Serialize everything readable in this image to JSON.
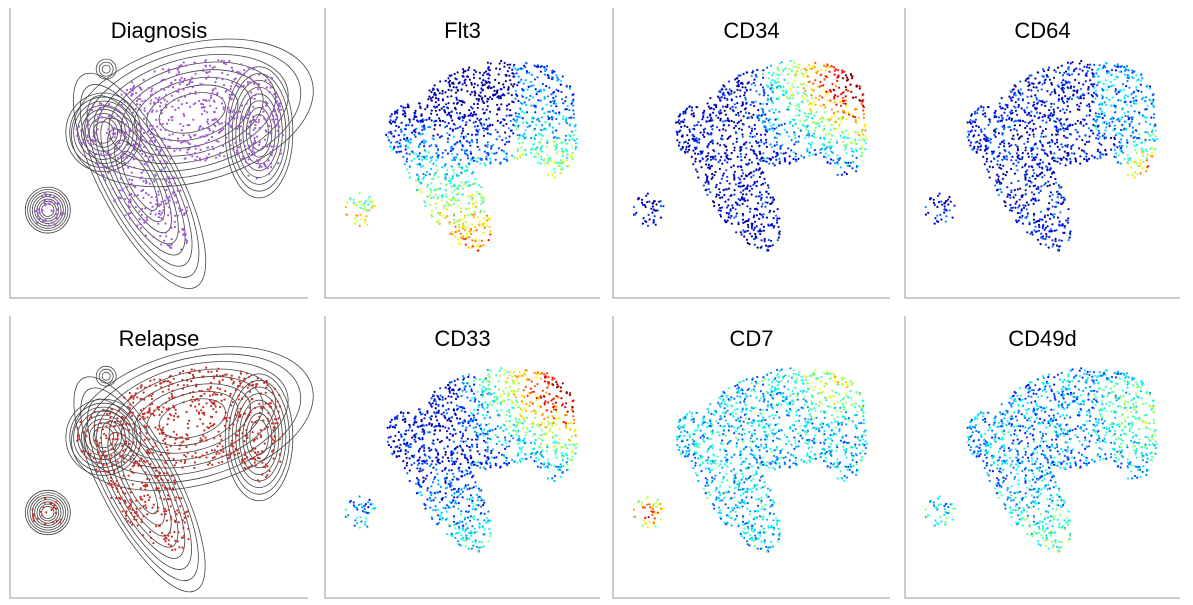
{
  "panels": [
    {
      "title": "Diagnosis"
    },
    {
      "title": "Flt3"
    },
    {
      "title": "CD34"
    },
    {
      "title": "CD64"
    },
    {
      "title": "Relapse"
    },
    {
      "title": "CD33"
    },
    {
      "title": "CD7"
    },
    {
      "title": "CD49d"
    }
  ]
}
